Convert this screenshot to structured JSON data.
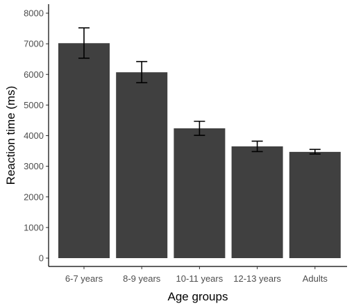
{
  "chart_data": {
    "type": "bar",
    "categories": [
      "6-7 years",
      "8-9 years",
      "10-11 years",
      "12-13 years",
      "Adults"
    ],
    "values": [
      7020,
      6070,
      4240,
      3650,
      3470
    ],
    "error_low": [
      6530,
      5730,
      4010,
      3480,
      3400
    ],
    "error_high": [
      7520,
      6420,
      4470,
      3820,
      3550
    ],
    "xlabel": "Age groups",
    "ylabel": "Reaction time (ms)",
    "ylim": [
      0,
      8000
    ],
    "yticks": [
      0,
      1000,
      2000,
      3000,
      4000,
      5000,
      6000,
      7000,
      8000
    ],
    "grid": false,
    "bar_color": "#404040",
    "error_bar_color": "#000000"
  }
}
